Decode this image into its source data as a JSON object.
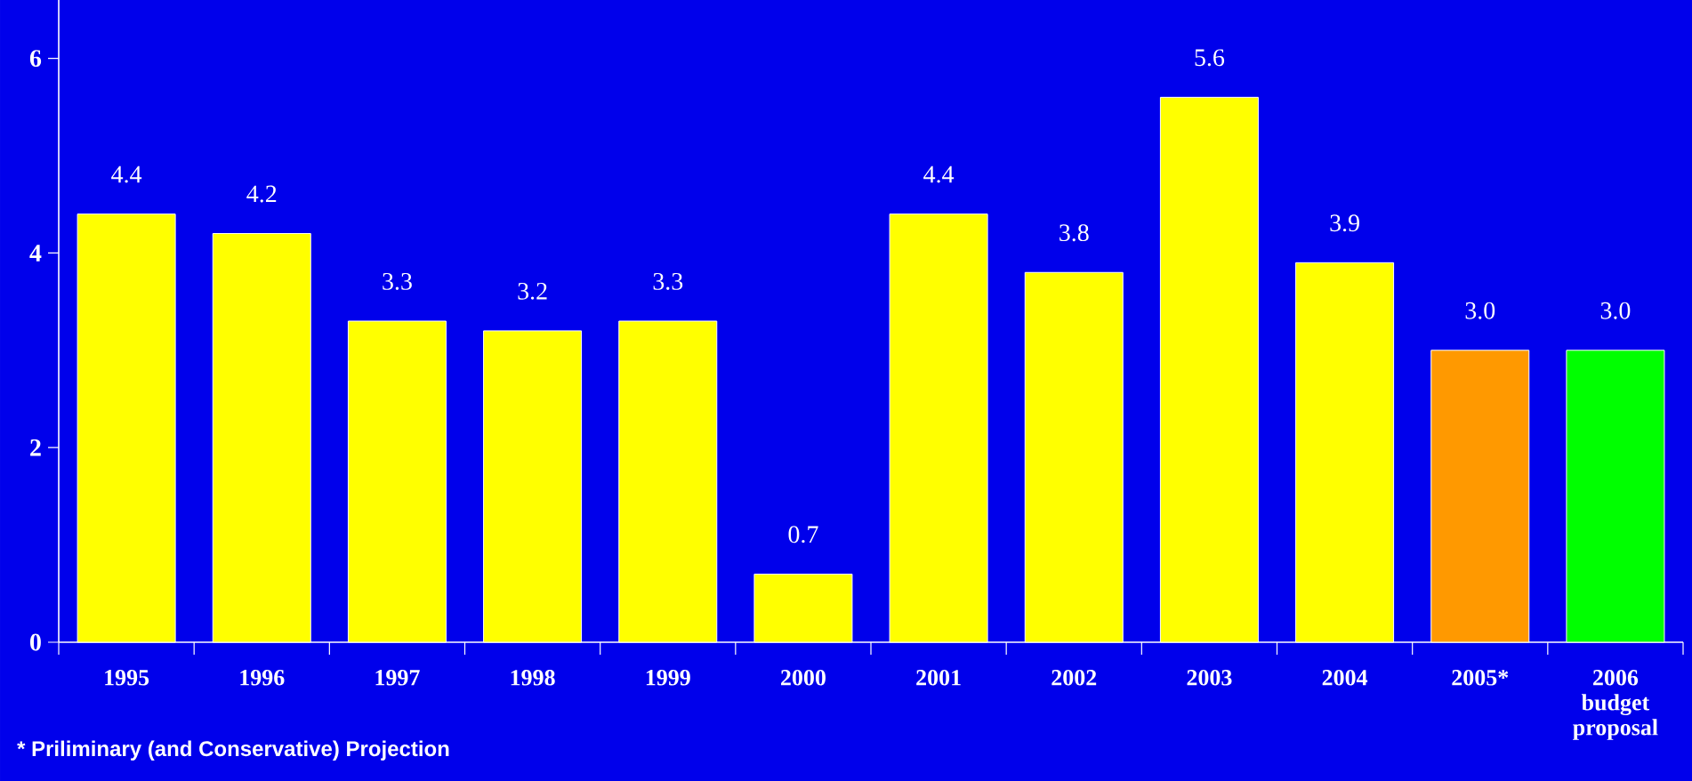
{
  "chart_data": {
    "type": "bar",
    "categories": [
      "1995",
      "1996",
      "1997",
      "1998",
      "1999",
      "2000",
      "2001",
      "2002",
      "2003",
      "2004",
      "2005*",
      "2006 budget proposal"
    ],
    "values": [
      4.4,
      4.2,
      3.3,
      3.2,
      3.3,
      0.7,
      4.4,
      3.8,
      5.6,
      3.9,
      3.0,
      3.0
    ],
    "colors": [
      "#ffff00",
      "#ffff00",
      "#ffff00",
      "#ffff00",
      "#ffff00",
      "#ffff00",
      "#ffff00",
      "#ffff00",
      "#ffff00",
      "#ffff00",
      "#ff9900",
      "#00ff00"
    ],
    "value_labels": [
      "4.4",
      "4.2",
      "3.3",
      "3.2",
      "3.3",
      "0.7",
      "4.4",
      "3.8",
      "5.6",
      "3.9",
      "3.0",
      "3.0"
    ],
    "ylim": [
      0,
      6.6
    ],
    "yticks": [
      0,
      2,
      4,
      6
    ],
    "annotations": [
      "* Priliminary (and  Conservative) Projection"
    ]
  }
}
